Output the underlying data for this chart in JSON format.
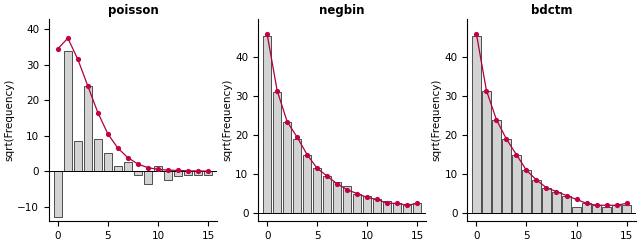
{
  "titles": [
    "poisson",
    "negbin",
    "bdctm"
  ],
  "ylabel": "sqrt(Frequency)",
  "bar_color": "#d3d3d3",
  "bar_edge_color": "#111111",
  "line_color": "#b0003a",
  "dot_color": "#c0004a",
  "poisson": {
    "bar_h": [
      -13.0,
      34.0,
      8.5,
      24.0,
      9.0,
      5.0,
      1.5,
      2.5,
      -1.0,
      -3.5,
      1.5,
      -2.5,
      -1.5,
      -1.0,
      -1.0,
      -1.0
    ],
    "dot_y": [
      34.5,
      37.5,
      31.5,
      24.0,
      16.5,
      10.5,
      6.5,
      3.8,
      2.0,
      1.0,
      0.5,
      0.3,
      0.2,
      0.1,
      0.05,
      0.02
    ],
    "ylim": [
      -14,
      43
    ],
    "yticks": [
      -10,
      0,
      10,
      20,
      30,
      40
    ]
  },
  "negbin": {
    "bar_h": [
      45.5,
      31.0,
      23.5,
      19.0,
      15.0,
      11.5,
      9.5,
      8.0,
      7.0,
      5.0,
      4.5,
      3.5,
      3.0,
      2.5,
      2.0,
      2.5
    ],
    "dot_y": [
      46.0,
      31.5,
      23.5,
      19.5,
      15.0,
      11.5,
      9.5,
      7.5,
      6.0,
      5.0,
      4.0,
      3.5,
      2.5,
      2.5,
      2.0,
      2.5
    ],
    "ylim": [
      -2,
      50
    ],
    "yticks": [
      0,
      10,
      20,
      30,
      40
    ]
  },
  "bdctm": {
    "bar_h": [
      45.5,
      31.5,
      24.0,
      19.0,
      15.0,
      11.0,
      8.5,
      6.5,
      5.5,
      4.5,
      1.5,
      2.5,
      2.0,
      1.5,
      2.0,
      2.0
    ],
    "dot_y": [
      46.0,
      31.5,
      24.0,
      19.0,
      15.0,
      11.0,
      8.5,
      6.5,
      5.5,
      4.5,
      3.5,
      2.5,
      2.0,
      2.0,
      2.0,
      2.5
    ],
    "ylim": [
      -2,
      50
    ],
    "yticks": [
      0,
      10,
      20,
      30,
      40
    ]
  },
  "bar_x": [
    0,
    1,
    2,
    3,
    4,
    5,
    6,
    7,
    8,
    9,
    10,
    11,
    12,
    13,
    14,
    15
  ],
  "xticks": [
    0,
    5,
    10,
    15
  ]
}
